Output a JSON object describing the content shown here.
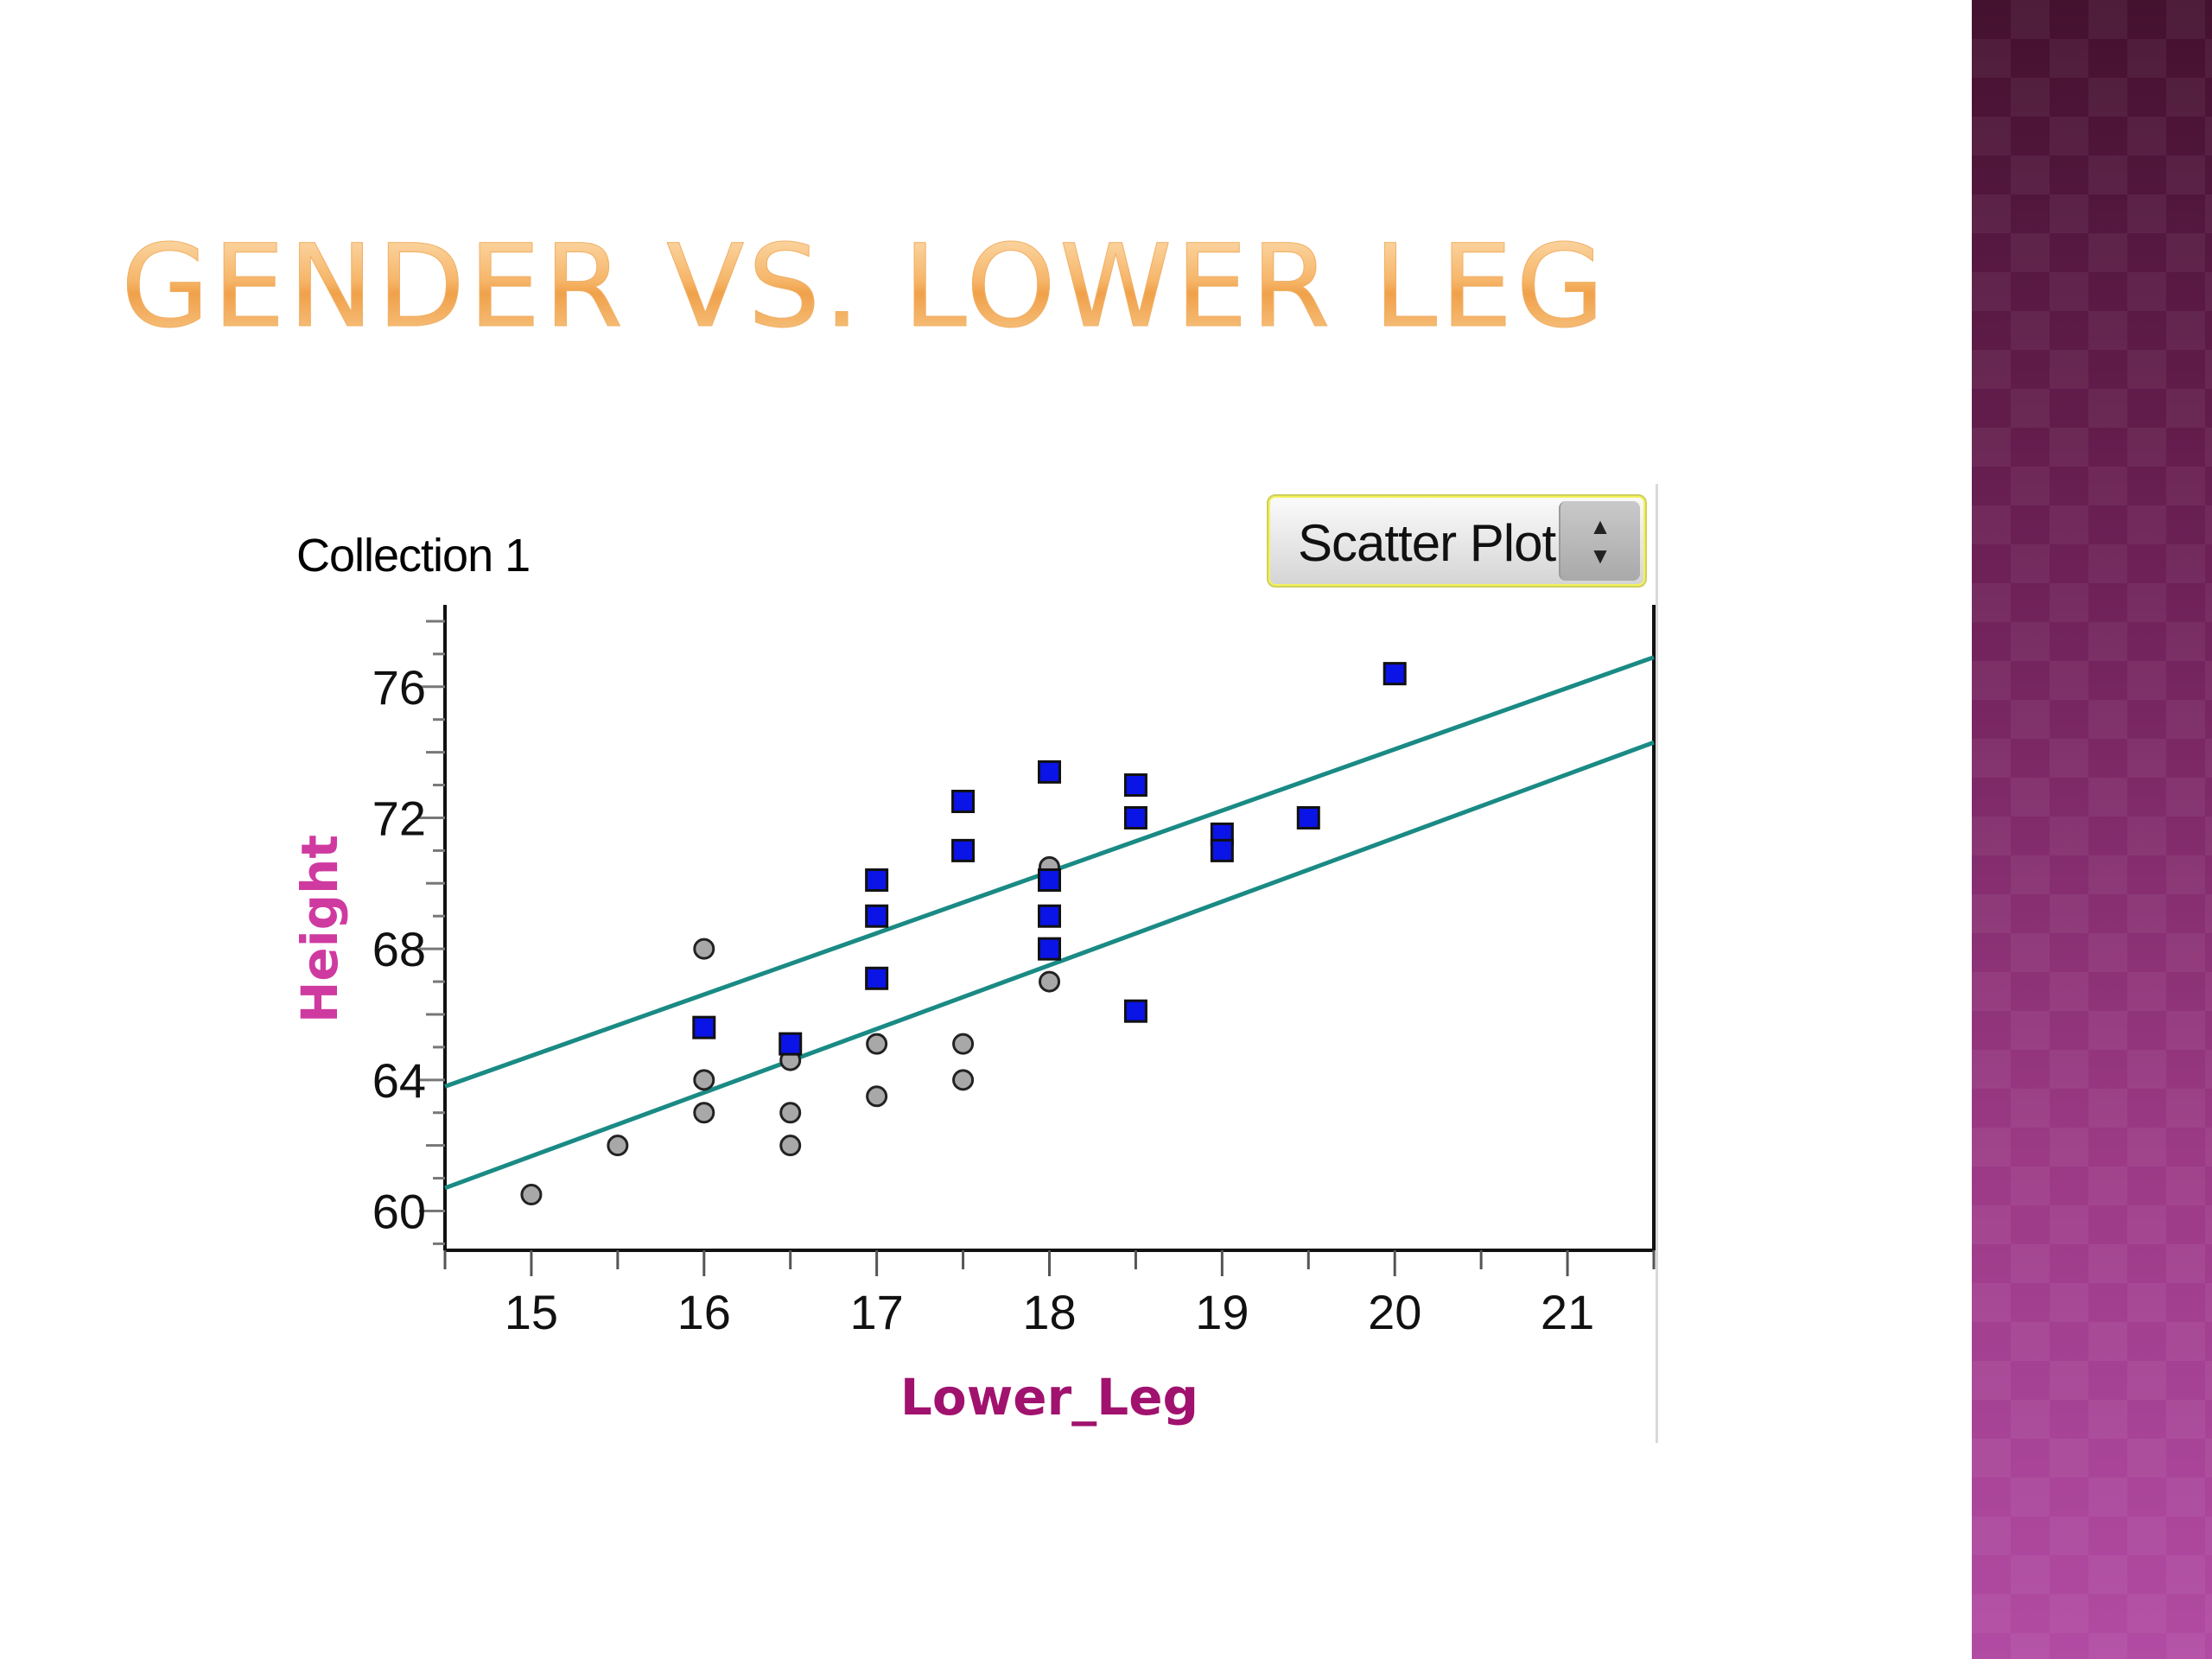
{
  "slide": {
    "title": "Gender vs. Lower Leg"
  },
  "panel": {
    "collection_label": "Collection 1",
    "plot_type_selected": "Scatter Plot"
  },
  "colors": {
    "title_gradient_top": "#fde2b9",
    "title_gradient_bottom": "#f0a14a",
    "band_top": "#44112f",
    "band_bottom": "#b14ba3",
    "male_marker": "#0a14e6",
    "female_marker": "#a8a8a8",
    "fit_line": "#1a8a84",
    "axis_label": "#a0126e"
  },
  "chart_data": {
    "type": "scatter",
    "xlabel": "Lower_Leg",
    "ylabel": "Height",
    "xlim": [
      14.5,
      21.5
    ],
    "ylim": [
      58.8,
      78.5
    ],
    "x_ticks": [
      15,
      16,
      17,
      18,
      19,
      20,
      21
    ],
    "y_ticks": [
      60,
      64,
      68,
      72,
      76
    ],
    "grid": false,
    "series": [
      {
        "marker": "square",
        "color": "#0a14e6",
        "points": [
          [
            16,
            65.6
          ],
          [
            16.5,
            65.1
          ],
          [
            17,
            70.1
          ],
          [
            17,
            69
          ],
          [
            17,
            67.1
          ],
          [
            17.5,
            72.5
          ],
          [
            17.5,
            71
          ],
          [
            18,
            73.4
          ],
          [
            18,
            70.1
          ],
          [
            18,
            69
          ],
          [
            18,
            68
          ],
          [
            18.5,
            73
          ],
          [
            18.5,
            72
          ],
          [
            18.5,
            66.1
          ],
          [
            19,
            71.5
          ],
          [
            19,
            71
          ],
          [
            19.5,
            72
          ],
          [
            20,
            76.4
          ]
        ]
      },
      {
        "marker": "circle",
        "color": "#a8a8a8",
        "points": [
          [
            15,
            60.5
          ],
          [
            15.5,
            62
          ],
          [
            16,
            68
          ],
          [
            16,
            64
          ],
          [
            16,
            63
          ],
          [
            16.5,
            64.6
          ],
          [
            16.5,
            63
          ],
          [
            16.5,
            62
          ],
          [
            17,
            65.1
          ],
          [
            17,
            63.5
          ],
          [
            17.5,
            65.1
          ],
          [
            17.5,
            64
          ],
          [
            18,
            70.5
          ],
          [
            18,
            67
          ]
        ]
      }
    ],
    "fit_lines": [
      {
        "x": [
          14.5,
          21.5
        ],
        "y": [
          63.8,
          76.9
        ]
      },
      {
        "x": [
          14.5,
          21.5
        ],
        "y": [
          60.7,
          74.3
        ]
      }
    ]
  }
}
